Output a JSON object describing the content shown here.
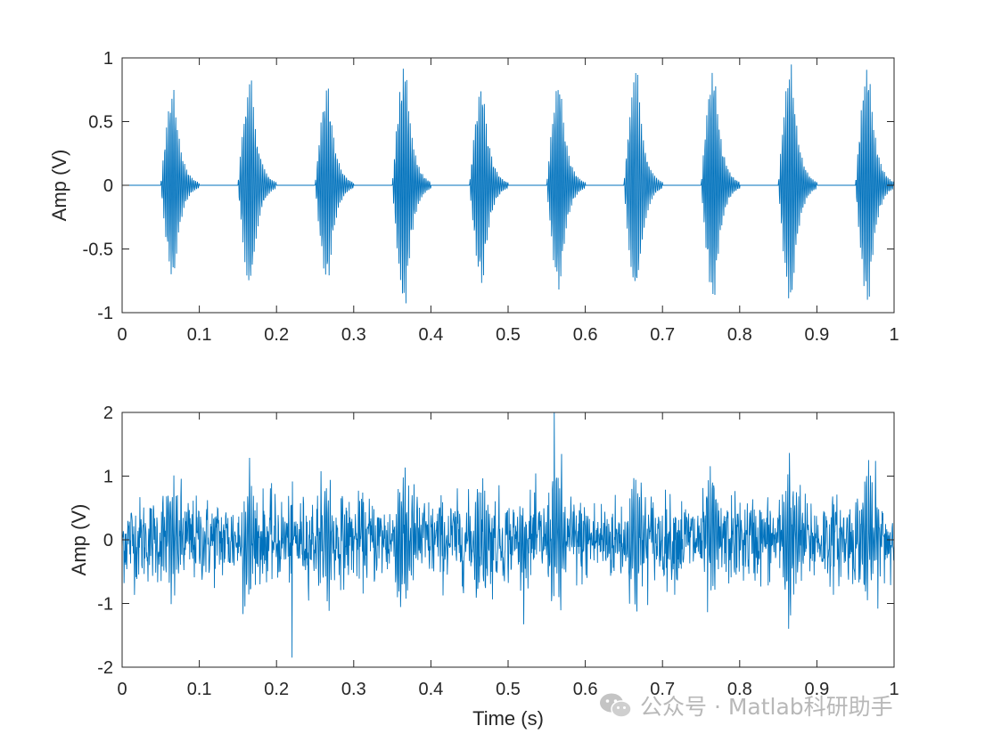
{
  "watermark": {
    "text": "公众号 · Matlab科研助手",
    "icon": "wechat-icon"
  },
  "colors": {
    "series": "#0072BD",
    "axes": "#262626",
    "watermark": "#b8b8b8"
  },
  "chart_data": [
    {
      "type": "line",
      "title": "",
      "xlabel": "",
      "ylabel": "Amp (V)",
      "xlim": [
        0,
        1
      ],
      "ylim": [
        -1,
        1
      ],
      "xticks": [
        0,
        0.1,
        0.2,
        0.3,
        0.4,
        0.5,
        0.6,
        0.7,
        0.8,
        0.9,
        1
      ],
      "xtick_labels": [
        "0",
        "0.1",
        "0.2",
        "0.3",
        "0.4",
        "0.5",
        "0.6",
        "0.7",
        "0.8",
        "0.9",
        "1"
      ],
      "yticks": [
        -1,
        -0.5,
        0,
        0.5,
        1
      ],
      "ytick_labels": [
        "-1",
        "-0.5",
        "0",
        "0.5",
        "1"
      ],
      "grid": false,
      "series": [
        {
          "description": "10 decaying tone bursts, one every 0.1 s",
          "burst_onsets_s": [
            0.05,
            0.15,
            0.25,
            0.35,
            0.45,
            0.55,
            0.65,
            0.75,
            0.85,
            0.95
          ],
          "burst_peak_amplitudes_V": [
            0.75,
            0.83,
            0.78,
            0.96,
            0.79,
            0.83,
            0.9,
            0.92,
            0.95,
            0.95
          ],
          "burst_duration_s": 0.05,
          "baseline_V": 0
        }
      ]
    },
    {
      "type": "line",
      "title": "",
      "xlabel": "Time (s)",
      "ylabel": "Amp (V)",
      "xlim": [
        0,
        1
      ],
      "ylim": [
        -2,
        2
      ],
      "xticks": [
        0,
        0.1,
        0.2,
        0.3,
        0.4,
        0.5,
        0.6,
        0.7,
        0.8,
        0.9,
        1
      ],
      "xtick_labels": [
        "0",
        "0.1",
        "0.2",
        "0.3",
        "0.4",
        "0.5",
        "0.6",
        "0.7",
        "0.8",
        "0.9",
        "1"
      ],
      "yticks": [
        -2,
        -1,
        0,
        1,
        2
      ],
      "ytick_labels": [
        "-2",
        "-1",
        "0",
        "1",
        "2"
      ],
      "grid": false,
      "series": [
        {
          "description": "bursts from top panel plus additive noise",
          "value_range_V": [
            -1.85,
            2.0
          ],
          "max_at_s": 0.56,
          "min_at_s": 0.22
        }
      ]
    }
  ]
}
